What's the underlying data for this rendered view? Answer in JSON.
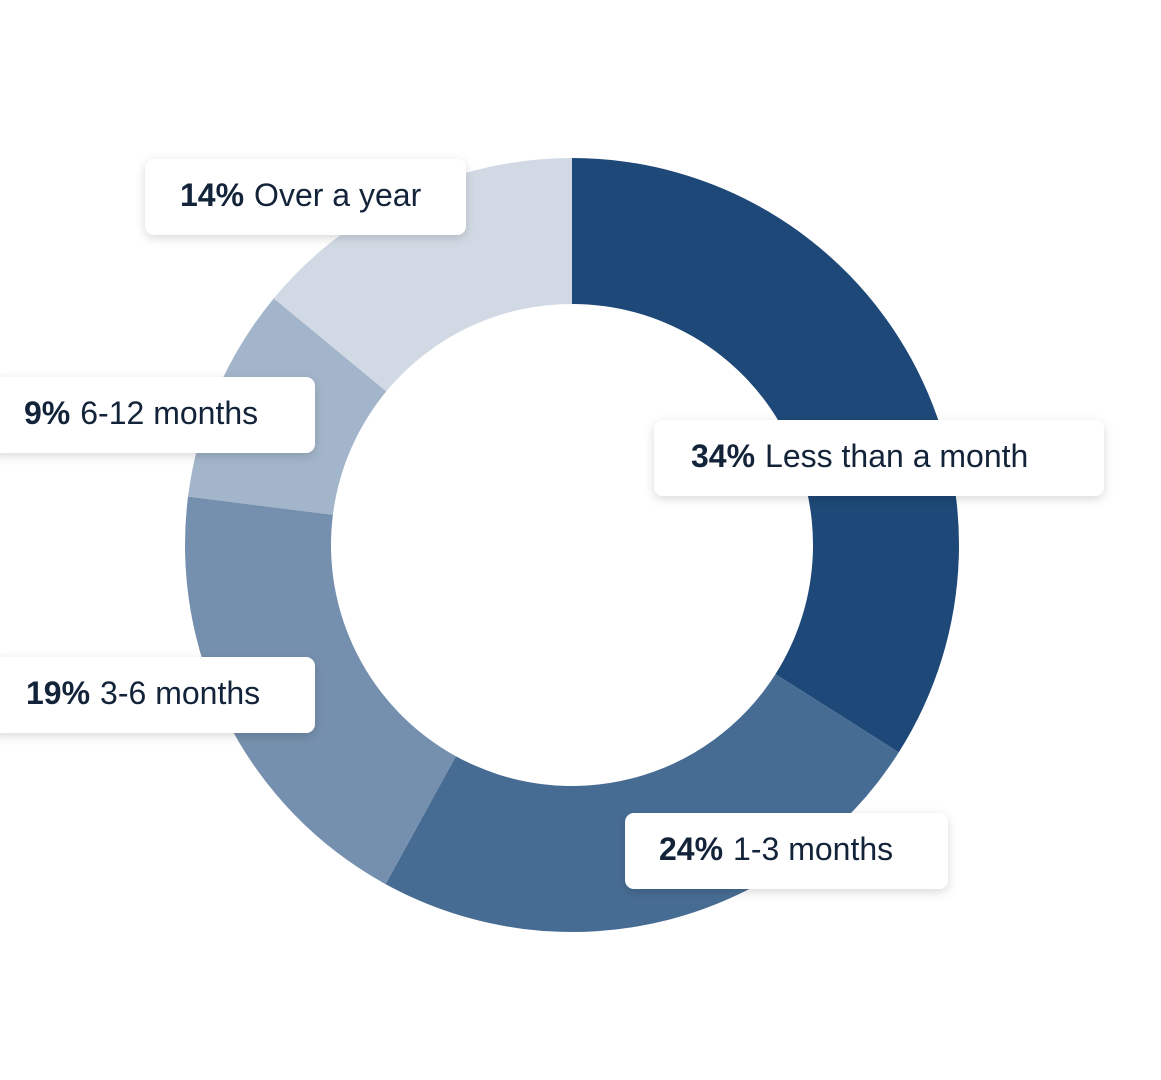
{
  "chart_data": {
    "type": "donut",
    "categories": [
      "Less than a month",
      "1-3 months",
      "3-6 months",
      "6-12 months",
      "Over a year"
    ],
    "values": [
      34,
      24,
      19,
      9,
      14
    ],
    "value_labels": [
      "34%",
      "24%",
      "19%",
      "9%",
      "14%"
    ],
    "colors": [
      "#1d4877",
      "#476c93",
      "#7590ae",
      "#a3b5ca",
      "#d1d9e4"
    ]
  }
}
